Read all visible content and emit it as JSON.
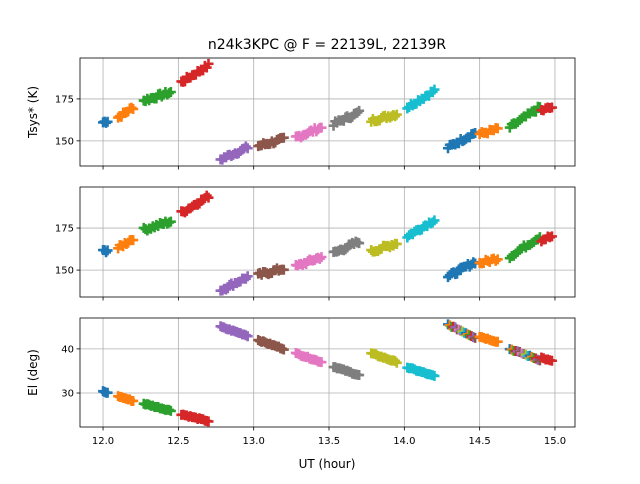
{
  "chart_data": {
    "type": "scatter",
    "title": "n24k3KPC @ F = 22139L, 22139R",
    "xlabel": "UT (hour)",
    "xlim": [
      11.847,
      15.133
    ],
    "xticks": [
      12.0,
      12.5,
      13.0,
      13.5,
      14.0,
      14.5,
      15.0
    ],
    "xtick_labels": [
      "12.0",
      "12.5",
      "13.0",
      "13.5",
      "14.0",
      "14.5",
      "15.0"
    ],
    "grid": true,
    "colors": [
      "#1f77b4",
      "#ff7f0e",
      "#2ca02c",
      "#d62728",
      "#9467bd",
      "#8c564b",
      "#e377c2",
      "#7f7f7f",
      "#bcbd22",
      "#17becf"
    ],
    "panels": [
      {
        "name": "tsys-L",
        "ylabel": "Tsys* (K)",
        "ylim": [
          135,
          199.4
        ],
        "yticks": [
          150,
          175
        ],
        "ytick_labels": [
          "150",
          "175"
        ],
        "field": "tsysL"
      },
      {
        "name": "tsys-R",
        "ylabel": "",
        "ylim": [
          134,
          199.4
        ],
        "yticks": [
          150,
          175
        ],
        "ytick_labels": [
          "150",
          "175"
        ],
        "field": "tsysR"
      },
      {
        "name": "elevation",
        "ylabel": "El (deg)",
        "ylim": [
          22.3,
          47.0
        ],
        "yticks": [
          30,
          40
        ],
        "ytick_labels": [
          "30",
          "40"
        ],
        "field": "el"
      }
    ],
    "scans": [
      {
        "color": 0,
        "t": [
          12.0,
          12.03
        ],
        "tsysL": [
          161,
          162
        ],
        "tsysR": [
          161,
          162
        ],
        "el": [
          30.3,
          30.0
        ],
        "n": 4
      },
      {
        "color": 1,
        "t": [
          12.1,
          12.2
        ],
        "tsysL": [
          164,
          170
        ],
        "tsysR": [
          163,
          169
        ],
        "el": [
          29.3,
          28.2
        ],
        "n": 10
      },
      {
        "color": 2,
        "t": [
          12.27,
          12.45
        ],
        "tsysL": [
          174,
          179
        ],
        "tsysR": [
          174,
          179
        ],
        "el": [
          27.6,
          26.0
        ],
        "n": 16
      },
      {
        "color": 3,
        "t": [
          12.52,
          12.7
        ],
        "tsysL": [
          185,
          195
        ],
        "tsysR": [
          184,
          194
        ],
        "el": [
          25.2,
          23.6
        ],
        "n": 16
      },
      {
        "color": 4,
        "t": [
          12.78,
          12.96
        ],
        "tsysL": [
          139,
          146
        ],
        "tsysR": [
          138,
          146
        ],
        "el": [
          45.0,
          43.0
        ],
        "n": 16
      },
      {
        "color": 5,
        "t": [
          13.03,
          13.2
        ],
        "tsysL": [
          147,
          151
        ],
        "tsysR": [
          147,
          151
        ],
        "el": [
          42.0,
          40.0
        ],
        "n": 16
      },
      {
        "color": 6,
        "t": [
          13.28,
          13.45
        ],
        "tsysL": [
          152,
          158
        ],
        "tsysR": [
          152,
          158
        ],
        "el": [
          39.0,
          37.0
        ],
        "n": 16
      },
      {
        "color": 7,
        "t": [
          13.53,
          13.7
        ],
        "tsysL": [
          160,
          167
        ],
        "tsysR": [
          160,
          167
        ],
        "el": [
          36.0,
          34.0
        ],
        "n": 16
      },
      {
        "color": 8,
        "t": [
          13.78,
          13.95
        ],
        "tsysL": [
          162,
          166
        ],
        "tsysR": [
          161,
          166
        ],
        "el": [
          39.0,
          37.0
        ],
        "n": 16
      },
      {
        "color": 9,
        "t": [
          14.02,
          14.2
        ],
        "tsysL": [
          170,
          180
        ],
        "tsysR": [
          170,
          180
        ],
        "el": [
          35.8,
          33.8
        ],
        "n": 16
      },
      {
        "color": 0,
        "t": [
          14.29,
          14.47
        ],
        "tsysL": [
          146,
          155
        ],
        "tsysR": [
          146,
          155
        ],
        "el": [
          45.5,
          42.6
        ],
        "n": 16,
        "el_multicolor": true
      },
      {
        "color": 1,
        "t": [
          14.5,
          14.62
        ],
        "tsysL": [
          154,
          157
        ],
        "tsysR": [
          154,
          157
        ],
        "el": [
          42.8,
          41.6
        ],
        "n": 10
      },
      {
        "color": 2,
        "t": [
          14.7,
          14.9
        ],
        "tsysL": [
          158,
          170
        ],
        "tsysR": [
          158,
          170
        ],
        "el": [
          40.0,
          37.5
        ],
        "n": 16,
        "el_multicolor": true
      },
      {
        "color": 3,
        "t": [
          14.91,
          14.98
        ],
        "tsysL": [
          168,
          170
        ],
        "tsysR": [
          168,
          170
        ],
        "el": [
          38.0,
          37.2
        ],
        "n": 6
      }
    ]
  }
}
